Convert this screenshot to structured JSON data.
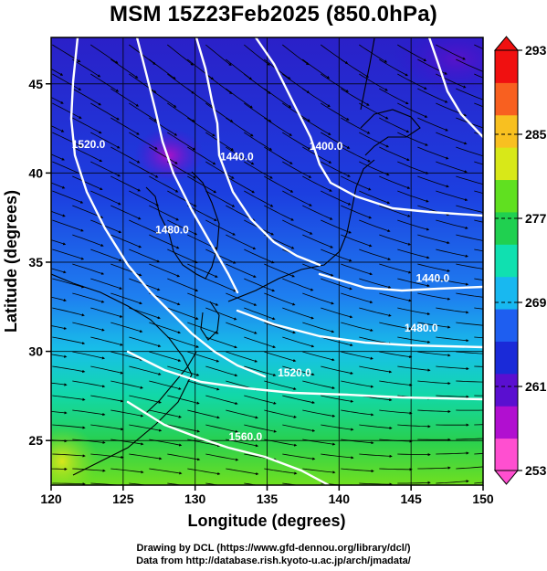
{
  "title": "MSM 15Z23Feb2025 (850.0hPa)",
  "x_axis": {
    "label": "Longitude (degrees)",
    "range": [
      120,
      150
    ],
    "ticks": [
      "120",
      "125",
      "130",
      "135",
      "140",
      "145",
      "150"
    ]
  },
  "y_axis": {
    "label": "Latitude  (degrees)",
    "range": [
      22.5,
      47.6
    ],
    "ticks": [
      "25",
      "30",
      "35",
      "40",
      "45"
    ]
  },
  "colorbar": {
    "range": [
      253,
      293
    ],
    "ticks": [
      "253",
      "261",
      "269",
      "277",
      "285",
      "293"
    ],
    "colors": [
      "#ff4fd0",
      "#b10fd0",
      "#5a0fd0",
      "#1a2ad8",
      "#1e5ef0",
      "#18b8f0",
      "#10e0b0",
      "#20d050",
      "#60e020",
      "#d8e818",
      "#f8c020",
      "#f86020",
      "#f01010"
    ]
  },
  "contours": [
    {
      "label": "1400.0",
      "lon": 139.1,
      "lat": 41.3
    },
    {
      "label": "1440.0",
      "lon": 132.9,
      "lat": 40.7
    },
    {
      "label": "1480.0",
      "lon": 128.4,
      "lat": 36.6
    },
    {
      "label": "1520.0",
      "lon": 122.6,
      "lat": 41.4
    },
    {
      "label": "1440.0",
      "lon": 146.5,
      "lat": 33.9
    },
    {
      "label": "1480.0",
      "lon": 145.7,
      "lat": 31.1
    },
    {
      "label": "1520.0",
      "lon": 136.9,
      "lat": 28.6
    },
    {
      "label": "1560.0",
      "lon": 133.5,
      "lat": 25.0
    }
  ],
  "credits": [
    "Drawing by DCL (https://www.gfd-dennou.org/library/dcl/)",
    "Data from http://database.rish.kyoto-u.ac.jp/arch/jmadata/"
  ]
}
